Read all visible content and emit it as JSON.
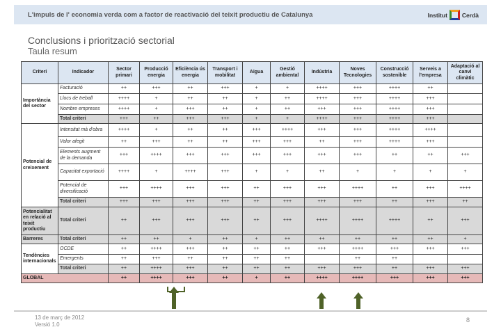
{
  "header": {
    "title": "L'impuls de l' economia verda com a factor de  reactivació del teixit productiu de Catalunya",
    "logo_text_left": "Institut",
    "logo_text_right": "Cerdà"
  },
  "page": {
    "title": "Conclusions i priorització sectorial",
    "subtitle": "Taula resum"
  },
  "table": {
    "columns": [
      "Criteri",
      "Indicador",
      "Sector primari",
      "Producció energia",
      "Eficiència ús energia",
      "Transport i mobilitat",
      "Aigua",
      "Gestió ambiental",
      "Indústria",
      "Noves Tecnologies",
      "Construcció sostenible",
      "Serveis a l'empresa",
      "Adaptació al canvi climàtic"
    ],
    "groups": [
      {
        "criteri": "Importància del sector",
        "rows": [
          {
            "indicador": "Facturació",
            "values": [
              "++",
              "+++",
              "++",
              "+++",
              "+",
              "+",
              "++++",
              "+++",
              "++++",
              "++",
              ""
            ]
          },
          {
            "indicador": "Llocs de treball",
            "values": [
              "++++",
              "+",
              "++",
              "++",
              "+",
              "++",
              "++++",
              "+++",
              "++++",
              "+++",
              ""
            ]
          },
          {
            "indicador": "Nombre empreses",
            "values": [
              "++++",
              "+",
              "+++",
              "++",
              "+",
              "++",
              "+++",
              "+++",
              "++++",
              "+++",
              ""
            ]
          },
          {
            "indicador": "Total criteri",
            "total": true,
            "values": [
              "+++",
              "++",
              "+++",
              "+++",
              "+",
              "+",
              "++++",
              "+++",
              "++++",
              "+++",
              ""
            ]
          }
        ]
      },
      {
        "criteri": "Potencial de creixement",
        "rows": [
          {
            "indicador": "Intensitat mà d'obra",
            "values": [
              "++++",
              "+",
              "++",
              "++",
              "+++",
              "++++",
              "+++",
              "+++",
              "++++",
              "++++",
              ""
            ]
          },
          {
            "indicador": "Valor afegit",
            "values": [
              "++",
              "+++",
              "++",
              "++",
              "+++",
              "+++",
              "++",
              "+++",
              "++++",
              "+++",
              ""
            ]
          },
          {
            "indicador": "Elements augment de la demanda",
            "values": [
              "+++",
              "++++",
              "+++",
              "+++",
              "+++",
              "+++",
              "+++",
              "+++",
              "++",
              "++",
              "+++"
            ]
          },
          {
            "indicador": "Capacitat exportació",
            "values": [
              "++++",
              "+",
              "++++",
              "+++",
              "+",
              "+",
              "++",
              "+",
              "+",
              "+",
              "+"
            ]
          },
          {
            "indicador": "Potencial de diversificació",
            "values": [
              "+++",
              "++++",
              "+++",
              "+++",
              "++",
              "+++",
              "+++",
              "++++",
              "++",
              "+++",
              "++++"
            ]
          },
          {
            "indicador": "Total criteri",
            "total": true,
            "values": [
              "+++",
              "+++",
              "+++",
              "+++",
              "++",
              "+++",
              "+++",
              "+++",
              "++",
              "+++",
              "++"
            ]
          }
        ]
      },
      {
        "criteri": "Potencialitat en relació al teixit productiu",
        "rows": [
          {
            "indicador": "Total criteri",
            "total": true,
            "values": [
              "++",
              "+++",
              "+++",
              "+++",
              "++",
              "+++",
              "++++",
              "++++",
              "++++",
              "++",
              "+++"
            ]
          }
        ]
      },
      {
        "criteri": "Barreres",
        "rows": [
          {
            "indicador": "Total criteri",
            "total": true,
            "values": [
              "++",
              "++",
              "+",
              "++",
              "+",
              "++",
              "++",
              "++",
              "++",
              "++",
              "+"
            ]
          }
        ]
      },
      {
        "criteri": "Tendències internacionals",
        "rows": [
          {
            "indicador": "OCDE",
            "values": [
              "++",
              "++++",
              "+++",
              "++",
              "++",
              "++",
              "+++",
              "++++",
              "+++",
              "+++",
              "+++"
            ]
          },
          {
            "indicador": "Emergents",
            "values": [
              "++",
              "+++",
              "++",
              "++",
              "++",
              "++",
              "",
              "++",
              "++",
              "",
              ""
            ]
          },
          {
            "indicador": "Total criteri",
            "total": true,
            "values": [
              "++",
              "++++",
              "+++",
              "++",
              "++",
              "++",
              "+++",
              "+++",
              "++",
              "+++",
              "+++"
            ]
          }
        ]
      }
    ],
    "global": {
      "label": "GLOBAL",
      "values": [
        "++",
        "++++",
        "+++",
        "++",
        "+",
        "++",
        "++++",
        "++++",
        "+++",
        "+++",
        "+++"
      ]
    }
  },
  "footer": {
    "date": "13 de març de 2012",
    "version": "Versió 1.0",
    "page_number": "8"
  },
  "colors": {
    "header_band": "#dce6f2",
    "total_row": "#d9d9d9",
    "global_row": "#e6b9b8",
    "arrow": "#4f6228"
  }
}
